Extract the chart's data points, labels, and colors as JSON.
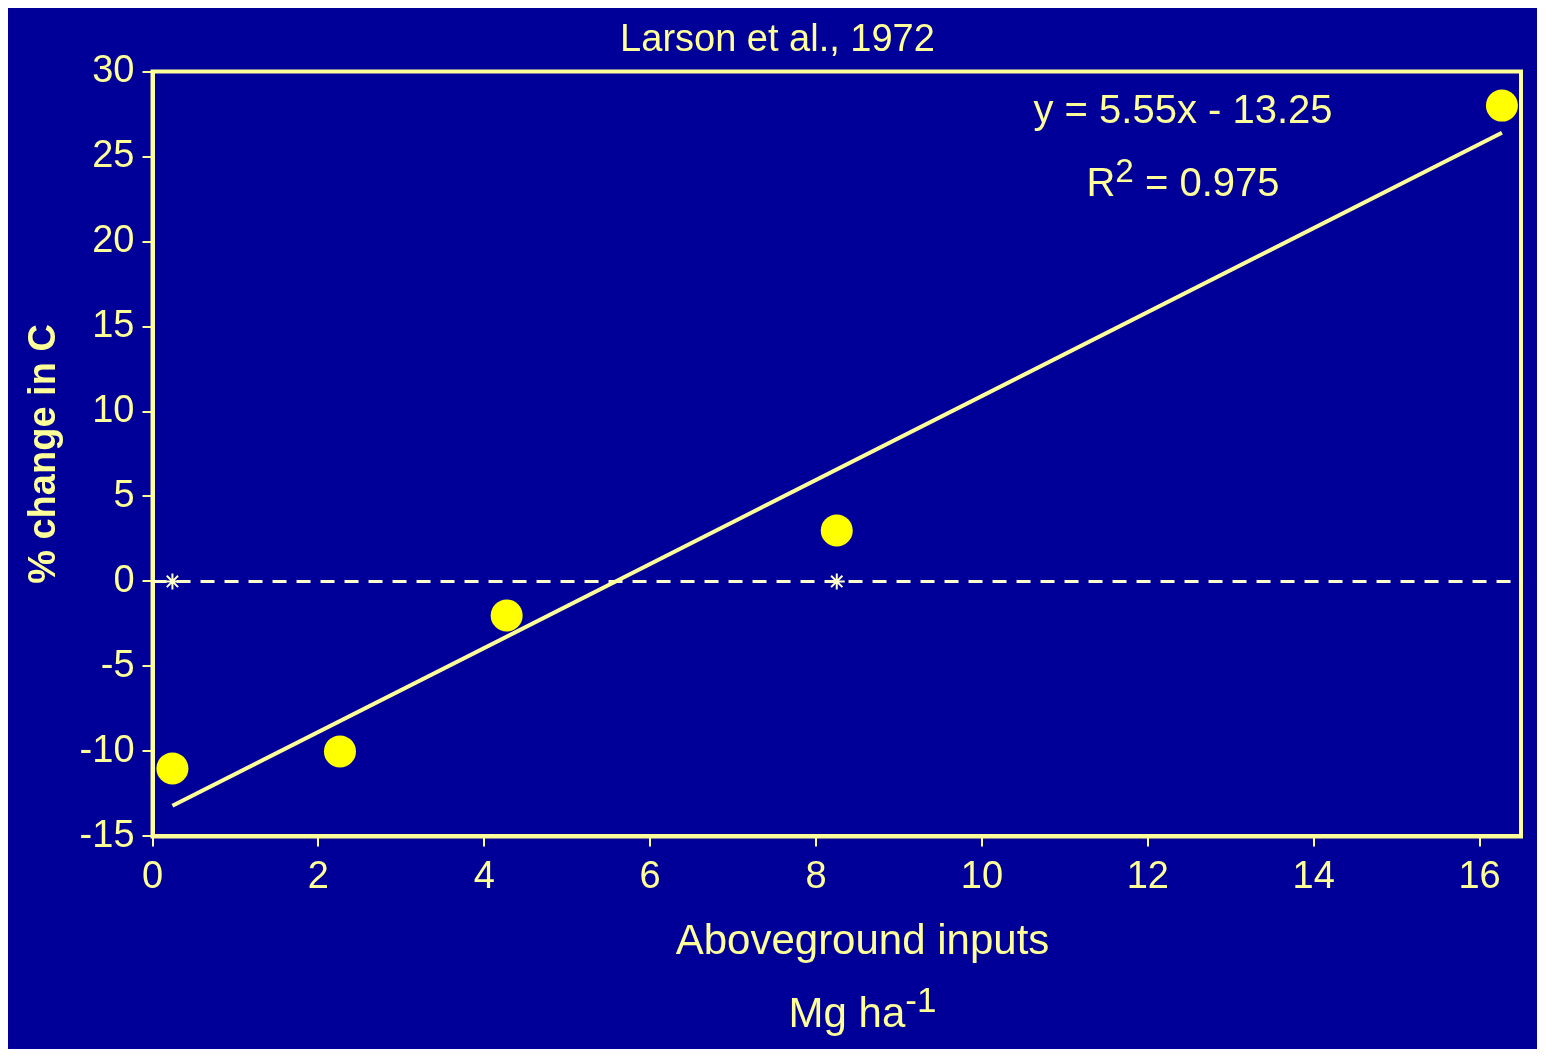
{
  "chart_data": {
    "type": "scatter",
    "title": "Larson et al., 1972",
    "xlabel": "Aboveground inputs\nMg ha$^{-1}$",
    "ylabel": "% change in C",
    "annotations": [
      "y = 5.55x - 13.25",
      "R$^{2}$ = 0.975"
    ],
    "series": [
      {
        "type": "scatter",
        "color": "#ffff00",
        "marker": "circle",
        "x": [
          0.24,
          2.26,
          4.27,
          8.25,
          16.27
        ],
        "values": [
          -11,
          -10,
          -2,
          3,
          28
        ]
      },
      {
        "type": "scatter",
        "color": "#ffffcc",
        "marker": "cross",
        "x": [
          0.24,
          8.25
        ],
        "values": [
          0,
          0
        ]
      },
      {
        "type": "line",
        "color": "#ffff99",
        "marker": "none",
        "x": [
          0.24,
          16.27
        ],
        "values": [
          -13.2,
          26.4
        ]
      }
    ],
    "ref_lines": [
      {
        "axis": "y",
        "value": 0,
        "color": "#ffffcc",
        "line_style": "dashed"
      }
    ],
    "xlim": [
      0,
      16.5
    ],
    "ylim": [
      -15,
      30
    ],
    "xticks": [
      0,
      2,
      4,
      6,
      8,
      10,
      12,
      14,
      16
    ],
    "yticks": [
      -15,
      -10,
      -5,
      0,
      5,
      10,
      15,
      20,
      25,
      30
    ],
    "grid": false
  }
}
